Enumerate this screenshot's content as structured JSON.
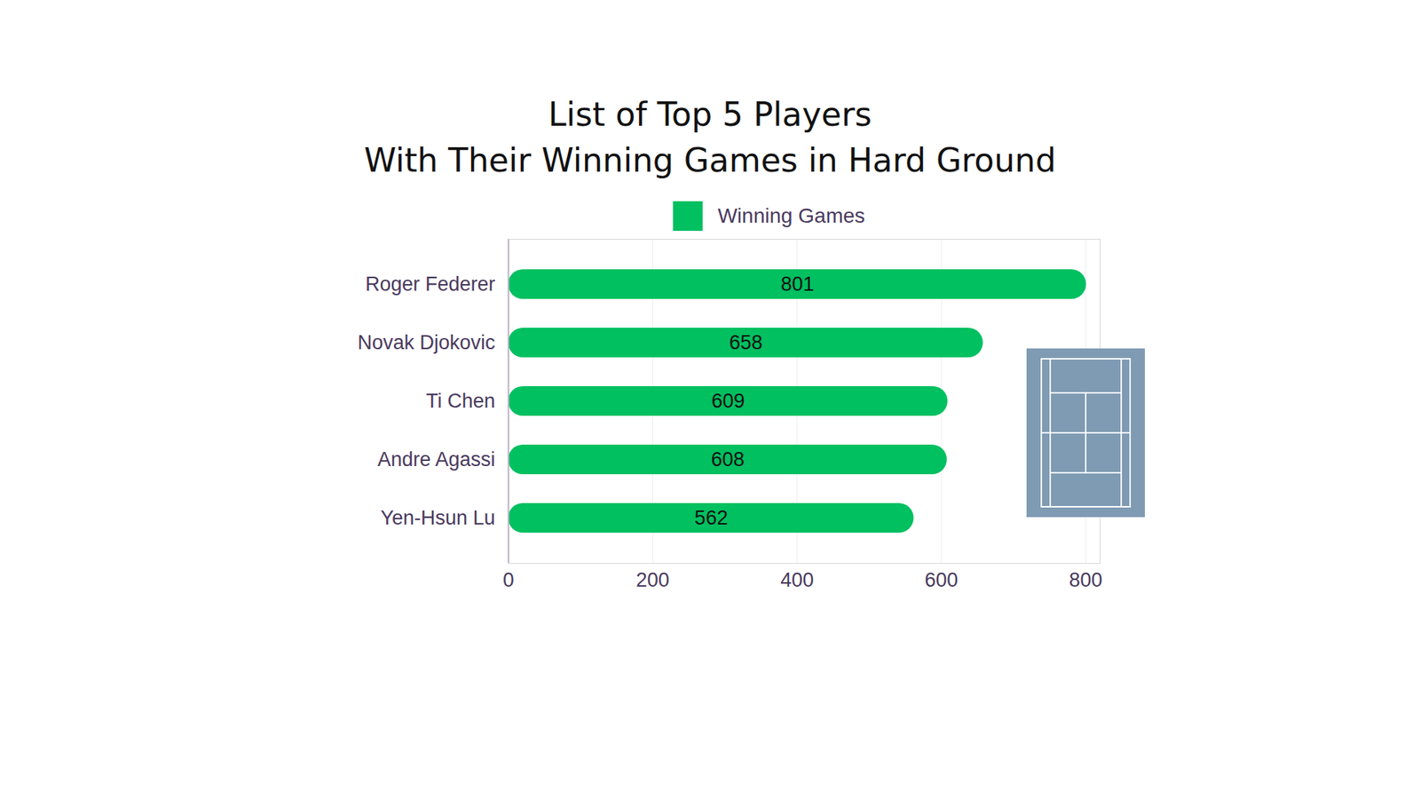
{
  "chart_data": {
    "type": "bar",
    "orientation": "horizontal",
    "title": "List of Top 5 Players",
    "subtitle": "With Their Winning Games in Hard Ground",
    "categories": [
      "Roger Federer",
      "Novak Djokovic",
      "Ti Chen",
      "Andre Agassi",
      "Yen-Hsun Lu"
    ],
    "series": [
      {
        "name": "Winning Games",
        "color": "#00c060",
        "values": [
          801,
          658,
          609,
          608,
          562
        ]
      }
    ],
    "xlim": [
      0,
      820
    ],
    "xticks": [
      0,
      200,
      400,
      600,
      800
    ],
    "grid": true,
    "data_labels": true,
    "legend": "top"
  }
}
